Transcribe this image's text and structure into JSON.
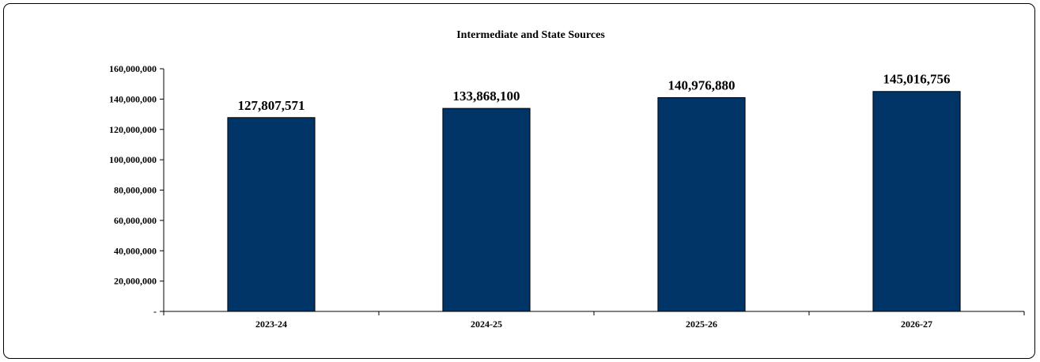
{
  "chart_data": {
    "type": "bar",
    "title": "Intermediate and State Sources",
    "xlabel": "",
    "ylabel": "",
    "categories": [
      "2023-24",
      "2024-25",
      "2025-26",
      "2026-27"
    ],
    "values": [
      127807571,
      133868100,
      140976880,
      145016756
    ],
    "data_labels": [
      "127,807,571",
      "133,868,100",
      "140,976,880",
      "145,016,756"
    ],
    "ylim": [
      0,
      160000000
    ],
    "y_ticks": [
      0,
      20000000,
      40000000,
      60000000,
      80000000,
      100000000,
      120000000,
      140000000,
      160000000
    ],
    "y_tick_labels": [
      "-",
      "20,000,000",
      "40,000,000",
      "60,000,000",
      "80,000,000",
      "100,000,000",
      "120,000,000",
      "140,000,000",
      "160,000,000"
    ],
    "grid": false,
    "legend": "none",
    "bar_color": "#003366",
    "bar_edge_color": "#000000"
  }
}
